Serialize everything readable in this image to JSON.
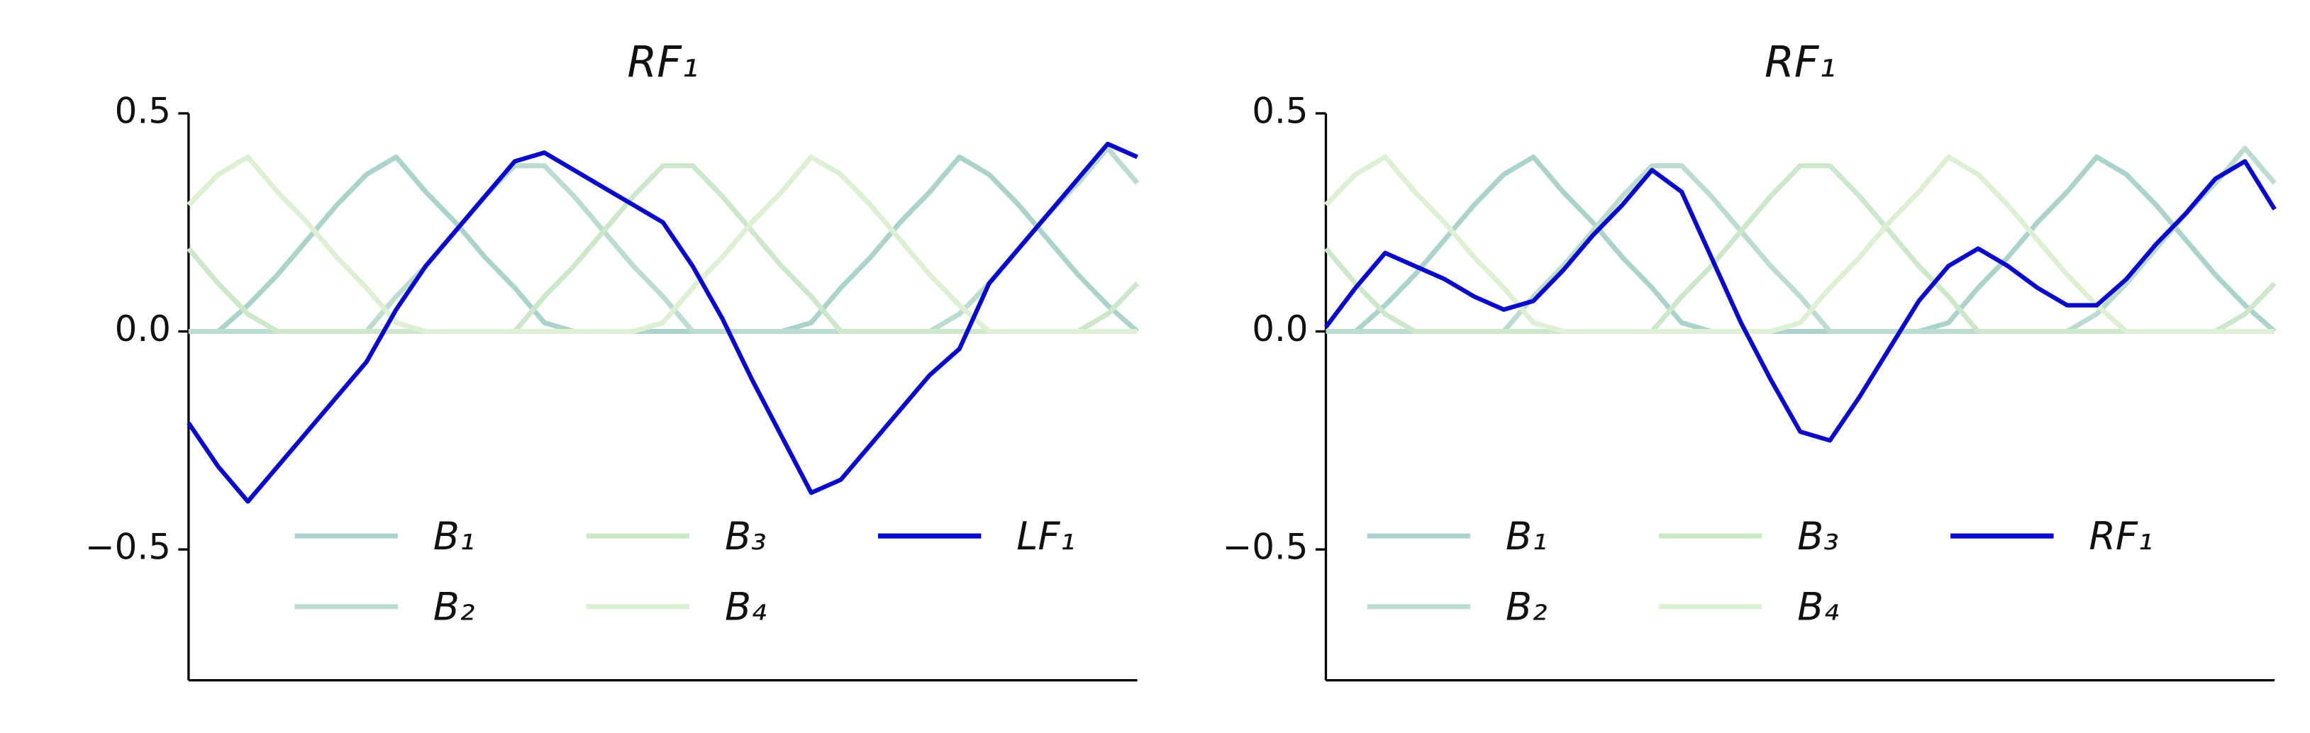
{
  "chart_data": [
    {
      "type": "line",
      "title": "RF₁",
      "x": [
        0,
        2,
        4,
        6,
        8,
        10,
        12,
        14,
        16,
        18,
        20,
        22,
        24,
        26,
        28,
        30,
        32,
        34,
        36,
        38,
        40,
        42,
        44,
        46,
        48,
        50,
        52,
        54,
        56,
        58,
        60,
        62,
        64
      ],
      "xlim": [
        0,
        64
      ],
      "ylim": [
        -0.8,
        0.5
      ],
      "yticks": [
        -0.5,
        0.0,
        0.5
      ],
      "legend": "lower center",
      "series": [
        {
          "name": "B₁",
          "color": "#acd3cb",
          "values": [
            0,
            0,
            0.06,
            0.13,
            0.21,
            0.29,
            0.36,
            0.4,
            0.32,
            0.25,
            0.17,
            0.1,
            0.02,
            0,
            0,
            0,
            0,
            0,
            0,
            0,
            0,
            0.02,
            0.1,
            0.17,
            0.25,
            0.32,
            0.4,
            0.36,
            0.29,
            0.21,
            0.13,
            0.06,
            0
          ]
        },
        {
          "name": "B₂",
          "color": "#bbdccf",
          "values": [
            0,
            0,
            0,
            0,
            0,
            0,
            0,
            0.08,
            0.15,
            0.23,
            0.31,
            0.38,
            0.38,
            0.31,
            0.23,
            0.15,
            0.08,
            0,
            0,
            0,
            0,
            0,
            0,
            0,
            0,
            0,
            0.04,
            0.11,
            0.19,
            0.27,
            0.34,
            0.42,
            0.34
          ]
        },
        {
          "name": "B₃",
          "color": "#cde7cb",
          "values": [
            0.19,
            0.11,
            0.04,
            0,
            0,
            0,
            0,
            0,
            0,
            0,
            0,
            0,
            0.08,
            0.15,
            0.23,
            0.31,
            0.38,
            0.38,
            0.31,
            0.23,
            0.15,
            0.08,
            0,
            0,
            0,
            0,
            0,
            0,
            0,
            0,
            0,
            0.04,
            0.11
          ]
        },
        {
          "name": "B₄",
          "color": "#ddf0d4",
          "values": [
            0.29,
            0.36,
            0.4,
            0.32,
            0.25,
            0.17,
            0.1,
            0.02,
            0,
            0,
            0,
            0,
            0,
            0,
            0,
            0,
            0.02,
            0.1,
            0.17,
            0.25,
            0.32,
            0.4,
            0.36,
            0.29,
            0.21,
            0.13,
            0.06,
            0,
            0,
            0,
            0,
            0,
            0
          ]
        },
        {
          "name": "LF₁",
          "color": "#0a0ac8",
          "values": [
            -0.21,
            -0.31,
            -0.39,
            -0.31,
            -0.23,
            -0.15,
            -0.07,
            0.05,
            0.15,
            0.23,
            0.31,
            0.39,
            0.41,
            0.37,
            0.33,
            0.29,
            0.25,
            0.15,
            0.03,
            -0.11,
            -0.24,
            -0.37,
            -0.34,
            -0.26,
            -0.18,
            -0.1,
            -0.04,
            0.11,
            0.19,
            0.27,
            0.35,
            0.43,
            0.4
          ]
        }
      ]
    },
    {
      "type": "line",
      "title": "RF₁",
      "x": [
        0,
        2,
        4,
        6,
        8,
        10,
        12,
        14,
        16,
        18,
        20,
        22,
        24,
        26,
        28,
        30,
        32,
        34,
        36,
        38,
        40,
        42,
        44,
        46,
        48,
        50,
        52,
        54,
        56,
        58,
        60,
        62,
        64
      ],
      "xlim": [
        0,
        64
      ],
      "ylim": [
        -0.8,
        0.5
      ],
      "yticks": [
        -0.5,
        0.0,
        0.5
      ],
      "legend": "lower center",
      "series": [
        {
          "name": "B₁",
          "color": "#acd3cb",
          "values": [
            0,
            0,
            0.06,
            0.13,
            0.21,
            0.29,
            0.36,
            0.4,
            0.32,
            0.25,
            0.17,
            0.1,
            0.02,
            0,
            0,
            0,
            0,
            0,
            0,
            0,
            0,
            0.02,
            0.1,
            0.17,
            0.25,
            0.32,
            0.4,
            0.36,
            0.29,
            0.21,
            0.13,
            0.06,
            0
          ]
        },
        {
          "name": "B₂",
          "color": "#bbdccf",
          "values": [
            0,
            0,
            0,
            0,
            0,
            0,
            0,
            0.08,
            0.15,
            0.23,
            0.31,
            0.38,
            0.38,
            0.31,
            0.23,
            0.15,
            0.08,
            0,
            0,
            0,
            0,
            0,
            0,
            0,
            0,
            0,
            0.04,
            0.11,
            0.19,
            0.27,
            0.34,
            0.42,
            0.34
          ]
        },
        {
          "name": "B₃",
          "color": "#cde7cb",
          "values": [
            0.19,
            0.11,
            0.04,
            0,
            0,
            0,
            0,
            0,
            0,
            0,
            0,
            0,
            0.08,
            0.15,
            0.23,
            0.31,
            0.38,
            0.38,
            0.31,
            0.23,
            0.15,
            0.08,
            0,
            0,
            0,
            0,
            0,
            0,
            0,
            0,
            0,
            0.04,
            0.11
          ]
        },
        {
          "name": "B₄",
          "color": "#ddf0d4",
          "values": [
            0.29,
            0.36,
            0.4,
            0.32,
            0.25,
            0.17,
            0.1,
            0.02,
            0,
            0,
            0,
            0,
            0,
            0,
            0,
            0,
            0.02,
            0.1,
            0.17,
            0.25,
            0.32,
            0.4,
            0.36,
            0.29,
            0.21,
            0.13,
            0.06,
            0,
            0,
            0,
            0,
            0,
            0
          ]
        },
        {
          "name": "RF₁",
          "color": "#0a0ac8",
          "values": [
            0.01,
            0.1,
            0.18,
            0.15,
            0.12,
            0.08,
            0.05,
            0.07,
            0.14,
            0.22,
            0.29,
            0.37,
            0.32,
            0.17,
            0.02,
            -0.11,
            -0.23,
            -0.25,
            -0.15,
            -0.04,
            0.07,
            0.15,
            0.19,
            0.15,
            0.1,
            0.06,
            0.06,
            0.12,
            0.2,
            0.27,
            0.35,
            0.39,
            0.28
          ]
        }
      ]
    }
  ]
}
